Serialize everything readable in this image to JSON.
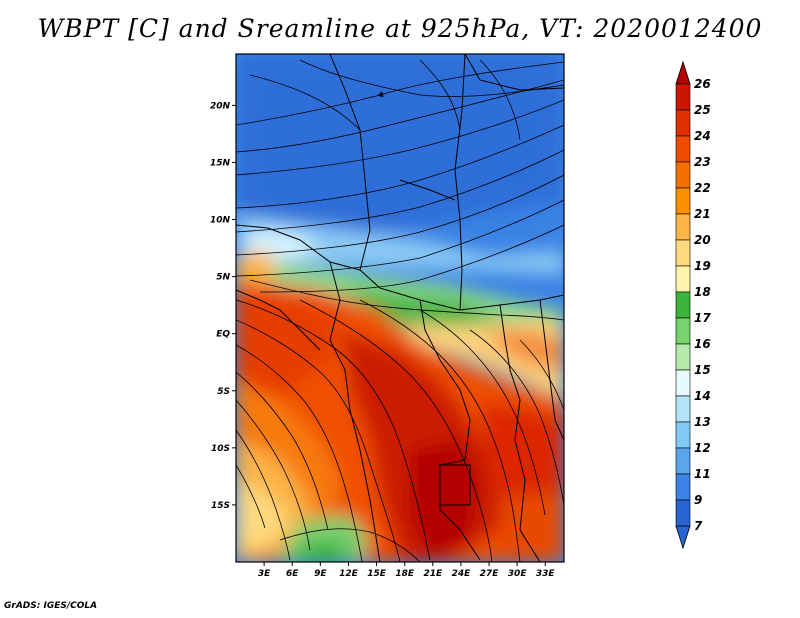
{
  "title": "WBPT [C] and Sreamline at 925hPa, VT: 2020012400",
  "credit": "GrADS: IGES/COLA",
  "map": {
    "lat_range": [
      -20,
      24.5
    ],
    "lon_range": [
      0,
      35
    ],
    "lat_ticks": [
      {
        "value": 20,
        "label": "20N"
      },
      {
        "value": 15,
        "label": "15N"
      },
      {
        "value": 10,
        "label": "10N"
      },
      {
        "value": 5,
        "label": "5N"
      },
      {
        "value": 0,
        "label": "EQ"
      },
      {
        "value": -5,
        "label": "5S"
      },
      {
        "value": -10,
        "label": "10S"
      },
      {
        "value": -15,
        "label": "15S"
      }
    ],
    "lon_ticks": [
      {
        "value": 3,
        "label": "3E"
      },
      {
        "value": 6,
        "label": "6E"
      },
      {
        "value": 9,
        "label": "9E"
      },
      {
        "value": 12,
        "label": "12E"
      },
      {
        "value": 15,
        "label": "15E"
      },
      {
        "value": 18,
        "label": "18E"
      },
      {
        "value": 21,
        "label": "21E"
      },
      {
        "value": 24,
        "label": "24E"
      },
      {
        "value": 27,
        "label": "27E"
      },
      {
        "value": 30,
        "label": "30E"
      },
      {
        "value": 33,
        "label": "33E"
      }
    ]
  },
  "colorbar": {
    "levels": [
      "26",
      "25",
      "24",
      "23",
      "22",
      "21",
      "20",
      "19",
      "18",
      "17",
      "16",
      "15",
      "14",
      "13",
      "12",
      "11",
      "9",
      "7"
    ],
    "colors": [
      "#b40000",
      "#cc1600",
      "#e03000",
      "#ee4c00",
      "#f56e00",
      "#fa9000",
      "#fdb446",
      "#ffd97e",
      "#fff5b0",
      "#3cb43c",
      "#78d26e",
      "#b4ebaa",
      "#e6faff",
      "#b4e4fa",
      "#82c8f5",
      "#5aa5ec",
      "#3c82e6",
      "#2864d2"
    ]
  }
}
